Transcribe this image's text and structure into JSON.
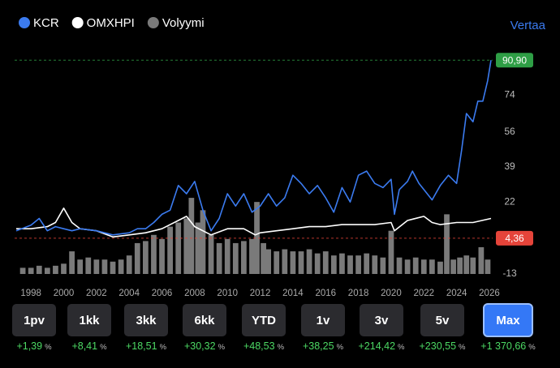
{
  "chart_data": {
    "type": "line",
    "compare_label": "Vertaa",
    "xlim": [
      1997,
      2026.2
    ],
    "xticks": [
      1998,
      2000,
      2002,
      2004,
      2006,
      2008,
      2010,
      2012,
      2014,
      2016,
      2018,
      2020,
      2022,
      2024,
      2026
    ],
    "ylim": [
      -13,
      91
    ],
    "yticks": [
      91,
      74,
      56,
      39,
      22,
      4,
      -13
    ],
    "series": [
      {
        "name": "KCR",
        "color": "#3b7bf0",
        "kind": "line",
        "x": [
          1997.1,
          1998,
          1998.5,
          1999,
          1999.5,
          2000,
          2000.5,
          2001,
          2002,
          2003,
          2004,
          2004.5,
          2005,
          2005.5,
          2006,
          2006.5,
          2007,
          2007.5,
          2008,
          2008.5,
          2009,
          2009.5,
          2010,
          2010.5,
          2011,
          2011.5,
          2012,
          2012.5,
          2013,
          2013.5,
          2014,
          2014.5,
          2015,
          2015.5,
          2016,
          2016.5,
          2017,
          2017.5,
          2018,
          2018.5,
          2019,
          2019.5,
          2020,
          2020.2,
          2020.5,
          2021,
          2021.3,
          2021.7,
          2022,
          2022.5,
          2023,
          2023.5,
          2024,
          2024.3,
          2024.6,
          2025,
          2025.3,
          2025.6,
          2025.9,
          2026.1
        ],
        "values": [
          8,
          10.7,
          14,
          8,
          10,
          9,
          8,
          9,
          8,
          6,
          7,
          9,
          9,
          12,
          16,
          18,
          30,
          26,
          32,
          18,
          8,
          14,
          26,
          20,
          26,
          17,
          20,
          26,
          20,
          24,
          35,
          31,
          26,
          30,
          24,
          17,
          29,
          22,
          35,
          37,
          31,
          29,
          33,
          16,
          28,
          32,
          37,
          31,
          28,
          23,
          30,
          35,
          31,
          47,
          65,
          61,
          71,
          71,
          81,
          90.9
        ]
      },
      {
        "name": "OMXHPI",
        "color": "#ffffff",
        "kind": "line",
        "x": [
          1997.1,
          1998,
          1999,
          1999.5,
          2000,
          2000.5,
          2001,
          2002,
          2003,
          2004,
          2005,
          2006,
          2007,
          2007.5,
          2008,
          2009,
          2010,
          2011,
          2011.7,
          2012,
          2013,
          2014,
          2015,
          2016,
          2017,
          2018,
          2019,
          2020,
          2020.2,
          2021,
          2022,
          2022.5,
          2023,
          2024,
          2025,
          2026.1
        ],
        "values": [
          9,
          9,
          10,
          12,
          19,
          12,
          9,
          8,
          5,
          6,
          7,
          9,
          13,
          15,
          10,
          6,
          9,
          9,
          6,
          7,
          8,
          9,
          10,
          10,
          11,
          11,
          11,
          12,
          8,
          13,
          15,
          12,
          11,
          12,
          12,
          14
        ]
      },
      {
        "name": "Volyymi",
        "color": "#7a7a7a",
        "kind": "bar",
        "x": [
          1997.5,
          1998,
          1998.5,
          1999,
          1999.5,
          2000,
          2000.5,
          2001,
          2001.5,
          2002,
          2002.5,
          2003,
          2003.5,
          2004,
          2004.5,
          2005,
          2005.5,
          2006,
          2006.5,
          2007,
          2007.5,
          2007.8,
          2008.2,
          2008.5,
          2009,
          2009.5,
          2010,
          2010.5,
          2011,
          2011.5,
          2011.8,
          2012.2,
          2012.5,
          2013,
          2013.5,
          2014,
          2014.5,
          2015,
          2015.5,
          2016,
          2016.5,
          2017,
          2017.5,
          2018,
          2018.5,
          2019,
          2019.5,
          2020,
          2020.5,
          2021,
          2021.5,
          2022,
          2022.5,
          2023,
          2023.4,
          2023.8,
          2024.2,
          2024.6,
          2025,
          2025.5,
          2025.9
        ],
        "values": [
          -10,
          -10,
          -9,
          -10,
          -9,
          -8,
          -2,
          -6,
          -5,
          -6,
          -6,
          -7,
          -6,
          -4,
          2,
          3,
          6,
          4,
          10,
          12,
          14,
          24,
          12,
          18,
          6,
          2,
          4,
          2,
          3,
          4,
          22,
          2,
          -1,
          -2,
          -1,
          -2,
          -2,
          -1,
          -3,
          -2,
          -4,
          -3,
          -4,
          -4,
          -3,
          -4,
          -5,
          8,
          -5,
          -6,
          -5,
          -6,
          -6,
          -7,
          16,
          -6,
          -5,
          -4,
          -5,
          0,
          -6
        ]
      }
    ],
    "price_labels": [
      {
        "value": 90.9,
        "label": "90,90",
        "color": "#2e9e45"
      },
      {
        "value": 4.36,
        "label": "4,36",
        "color": "#e5443a"
      }
    ],
    "buttons": [
      {
        "label": "1pv",
        "change": "+1,39",
        "unit": "%"
      },
      {
        "label": "1kk",
        "change": "+8,41",
        "unit": "%"
      },
      {
        "label": "3kk",
        "change": "+18,51",
        "unit": "%"
      },
      {
        "label": "6kk",
        "change": "+30,32",
        "unit": "%"
      },
      {
        "label": "YTD",
        "change": "+48,53",
        "unit": "%"
      },
      {
        "label": "1v",
        "change": "+38,25",
        "unit": "%"
      },
      {
        "label": "3v",
        "change": "+214,42",
        "unit": "%"
      },
      {
        "label": "5v",
        "change": "+230,55",
        "unit": "%"
      },
      {
        "label": "Max",
        "change": "+1 370,66",
        "unit": "%"
      }
    ],
    "selected_button": 8
  }
}
